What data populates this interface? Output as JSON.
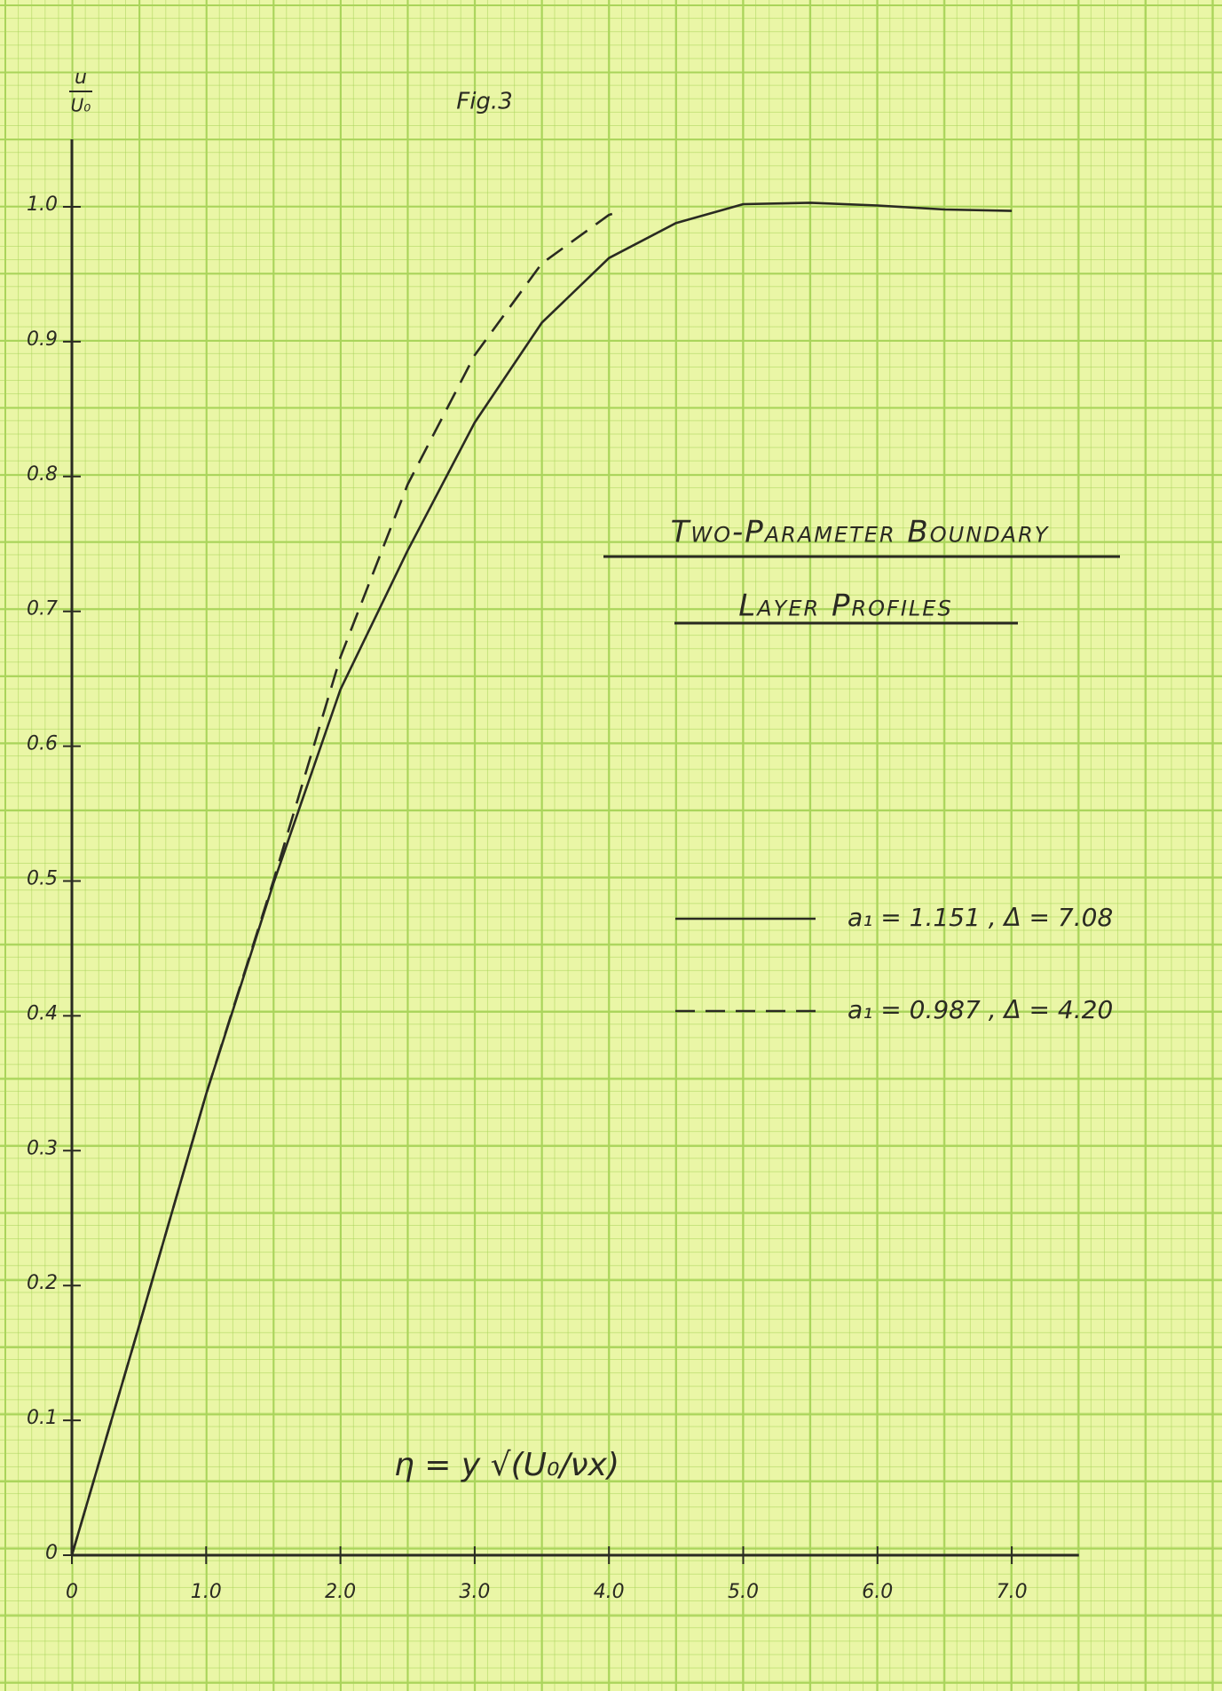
{
  "chart_data": {
    "type": "line",
    "figure_label": "Fig.3",
    "title_lines": [
      "Two-Parameter Boundary",
      "Layer Profiles"
    ],
    "y_label": {
      "numerator": "u",
      "denominator": "U₀"
    },
    "x_label": "η = y √(U₀/νx)",
    "xlim": [
      0,
      7.5
    ],
    "ylim": [
      0,
      1.05
    ],
    "xticks": [
      0,
      {
        "value": 1,
        "label": "1.0"
      },
      {
        "value": 2,
        "label": "2.0"
      },
      {
        "value": 3,
        "label": "3.0"
      },
      {
        "value": 4,
        "label": "4.0"
      },
      {
        "value": 5,
        "label": "5.0"
      },
      {
        "value": 6,
        "label": "6.0"
      },
      {
        "value": 7,
        "label": "7.0"
      }
    ],
    "yticks": [
      0,
      0.1,
      0.2,
      0.3,
      0.4,
      0.5,
      0.6,
      0.7,
      0.8,
      0.9,
      {
        "value": 1,
        "label": "1.0"
      }
    ],
    "series": [
      {
        "name": "a₁ = 1.151 , Δ = 7.08",
        "color": "#2a2a22",
        "dash": false,
        "x": [
          0,
          0.5,
          1.0,
          1.5,
          2.0,
          2.5,
          3.0,
          3.5,
          4.0,
          4.5,
          5.0,
          5.5,
          6.0,
          6.5,
          7.0
        ],
        "values": [
          0,
          0.17,
          0.342,
          0.498,
          0.642,
          0.745,
          0.84,
          0.914,
          0.962,
          0.988,
          1.002,
          1.003,
          1.001,
          0.998,
          0.997
        ]
      },
      {
        "name": "a₁ = 0.987 , Δ = 4.20",
        "color": "#2a2a22",
        "dash": true,
        "x": [
          0,
          0.5,
          1.0,
          1.5,
          2.0,
          2.5,
          3.0,
          3.5,
          4.0,
          4.1
        ],
        "values": [
          0,
          0.17,
          0.342,
          0.5,
          0.666,
          0.794,
          0.89,
          0.958,
          0.994,
          0.997
        ]
      }
    ]
  }
}
